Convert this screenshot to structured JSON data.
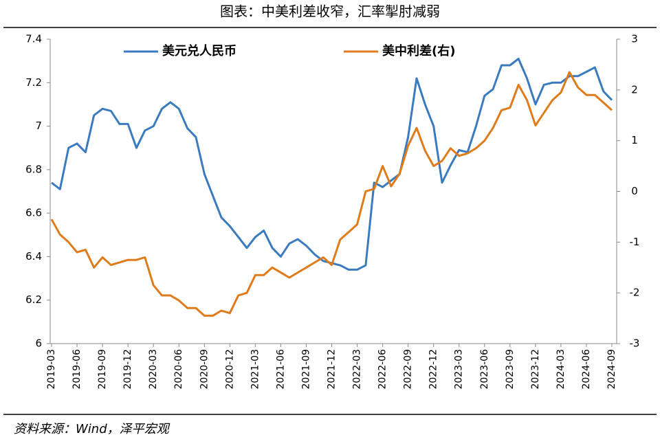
{
  "chart_data": {
    "type": "line",
    "title": "图表：中美利差收窄，汇率掣肘减弱",
    "source": "资料来源：Wind，泽平宏观",
    "categories": [
      "2019-03",
      null,
      null,
      "2019-06",
      null,
      null,
      "2019-09",
      null,
      null,
      "2019-12",
      null,
      null,
      "2020-03",
      null,
      null,
      "2020-06",
      null,
      null,
      "2020-09",
      null,
      null,
      "2020-12",
      null,
      null,
      "2021-03",
      null,
      null,
      "2021-06",
      null,
      null,
      "2021-09",
      null,
      null,
      "2021-12",
      null,
      null,
      "2022-03",
      null,
      null,
      "2022-06",
      null,
      null,
      "2022-09",
      null,
      null,
      "2022-12",
      null,
      null,
      "2023-03",
      null,
      null,
      "2023-06",
      null,
      null,
      "2023-09",
      null,
      null,
      "2023-12",
      null,
      null,
      "2024-03",
      null,
      null,
      "2024-06",
      null,
      null,
      "2024-09"
    ],
    "series": [
      {
        "name": "美元兑人民币",
        "color": "#3a7bc0",
        "values": [
          6.74,
          6.71,
          6.9,
          6.92,
          6.88,
          7.05,
          7.08,
          7.07,
          7.01,
          7.01,
          6.9,
          6.98,
          7.0,
          7.08,
          7.11,
          7.08,
          6.99,
          6.95,
          6.78,
          6.68,
          6.58,
          6.54,
          6.49,
          6.44,
          6.49,
          6.52,
          6.44,
          6.4,
          6.46,
          6.48,
          6.45,
          6.41,
          6.38,
          6.37,
          6.36,
          6.34,
          6.34,
          6.36,
          6.74,
          6.72,
          6.75,
          6.78,
          6.95,
          7.22,
          7.1,
          7.0,
          6.74,
          6.82,
          6.89,
          6.88,
          7.0,
          7.14,
          7.17,
          7.28,
          7.28,
          7.31,
          7.22,
          7.1,
          7.19,
          7.2,
          7.2,
          7.23,
          7.23,
          7.25,
          7.27,
          7.16,
          7.12
        ]
      },
      {
        "name": "美中利差(右)",
        "color": "#e07b1a",
        "axis": "y2",
        "values": [
          -0.55,
          -0.85,
          -1.0,
          -1.2,
          -1.15,
          -1.5,
          -1.3,
          -1.45,
          -1.4,
          -1.35,
          -1.35,
          -1.3,
          -1.85,
          -2.05,
          -2.05,
          -2.15,
          -2.3,
          -2.3,
          -2.45,
          -2.45,
          -2.35,
          -2.4,
          -2.05,
          -2.0,
          -1.65,
          -1.65,
          -1.5,
          -1.6,
          -1.7,
          -1.6,
          -1.5,
          -1.4,
          -1.3,
          -1.45,
          -0.95,
          -0.8,
          -0.65,
          0.0,
          0.05,
          0.5,
          0.1,
          0.35,
          0.9,
          1.25,
          0.8,
          0.5,
          0.6,
          0.85,
          0.7,
          0.75,
          0.85,
          1.0,
          1.25,
          1.6,
          1.65,
          2.1,
          1.8,
          1.3,
          1.55,
          1.8,
          1.95,
          2.35,
          2.05,
          1.9,
          1.9,
          1.75,
          1.6
        ]
      }
    ],
    "ylim": [
      6,
      7.4
    ],
    "yticks": [
      6,
      6.2,
      6.4,
      6.6,
      6.8,
      7,
      7.2,
      7.4
    ],
    "y2lim": [
      -3,
      3
    ],
    "y2ticks": [
      -3,
      -2,
      -1,
      0,
      1,
      2,
      3
    ]
  }
}
